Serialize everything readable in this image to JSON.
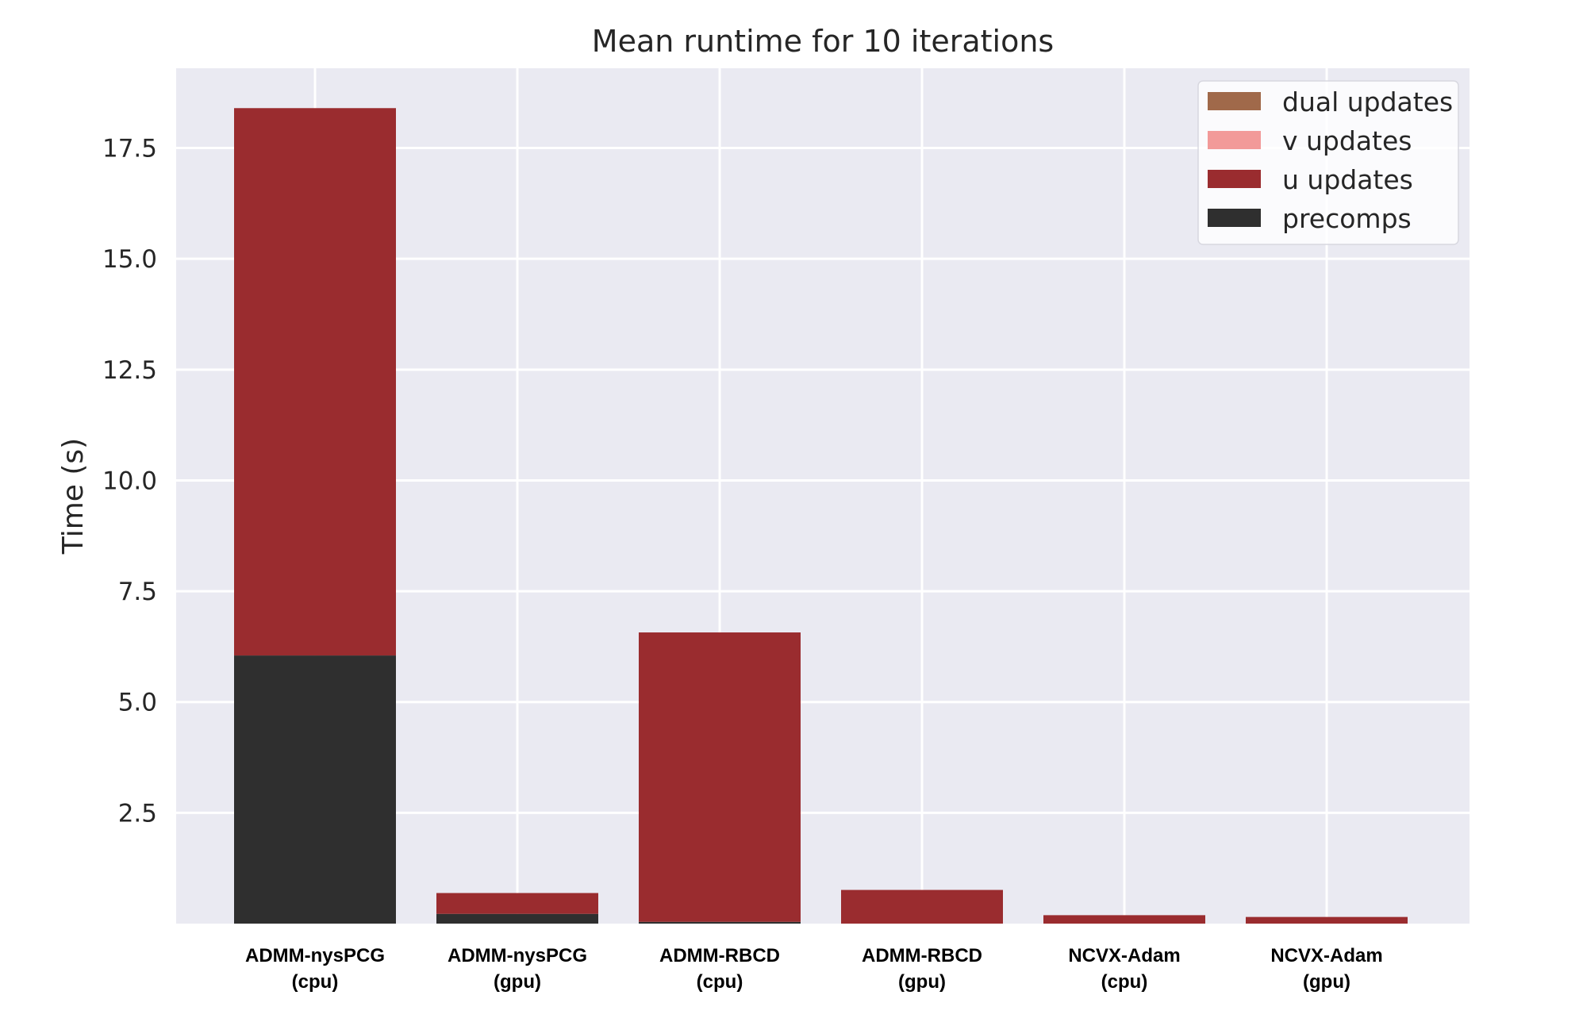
{
  "chart_data": {
    "type": "bar",
    "stacked": true,
    "title": "Mean runtime for 10 iterations",
    "xlabel": "",
    "ylabel": "Time (s)",
    "ylim": [
      0,
      19.3
    ],
    "yticks": [
      "2.5",
      "5.0",
      "7.5",
      "10.0",
      "12.5",
      "15.0",
      "17.5"
    ],
    "grid": true,
    "legend_position": "top-right",
    "categories": [
      [
        "ADMM-nysPCG",
        "(cpu)"
      ],
      [
        "ADMM-nysPCG",
        "(gpu)"
      ],
      [
        "ADMM-RBCD",
        "(cpu)"
      ],
      [
        "ADMM-RBCD",
        "(gpu)"
      ],
      [
        "NCVX-Adam",
        "(cpu)"
      ],
      [
        "NCVX-Adam",
        "(gpu)"
      ]
    ],
    "series": [
      {
        "name": "precomps",
        "color": "#2f2f2f",
        "values": [
          6.05,
          0.22,
          0.04,
          0.0,
          0.0,
          0.0
        ]
      },
      {
        "name": "u updates",
        "color": "#9a2c2f",
        "values": [
          12.35,
          0.47,
          6.53,
          0.76,
          0.19,
          0.15
        ]
      },
      {
        "name": "v updates",
        "color": "#f29a99",
        "values": [
          0.0,
          0.0,
          0.0,
          0.0,
          0.0,
          0.0
        ]
      },
      {
        "name": "dual updates",
        "color": "#a0694a",
        "values": [
          0.0,
          0.0,
          0.0,
          0.0,
          0.0,
          0.0
        ]
      }
    ],
    "legend_order": [
      "dual updates",
      "v updates",
      "u updates",
      "precomps"
    ],
    "colors": {
      "background": "#eaeaf2",
      "grid": "#ffffff"
    }
  }
}
